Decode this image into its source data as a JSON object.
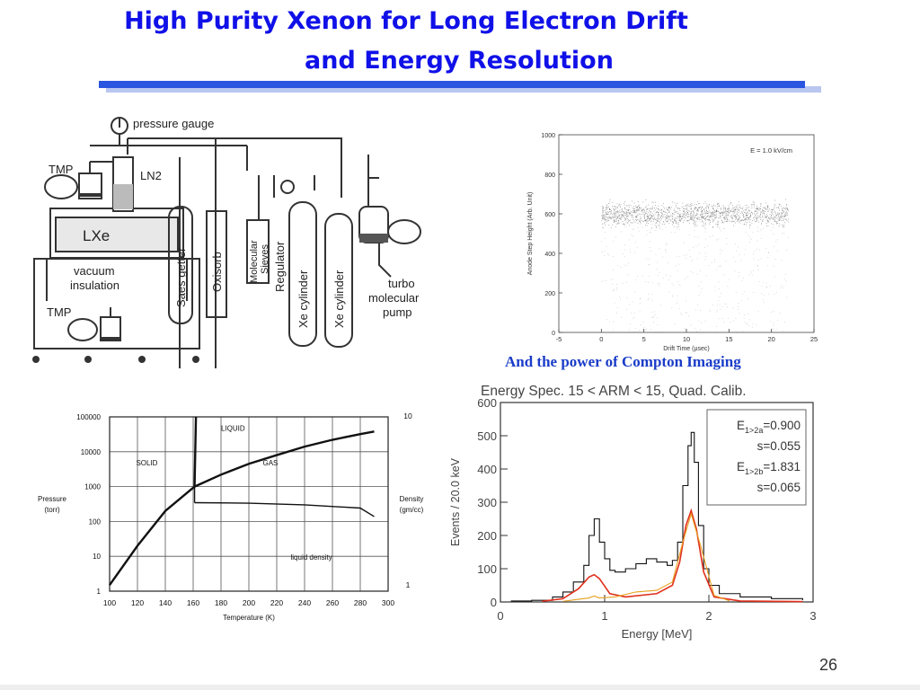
{
  "slide": {
    "title_line1": "High Purity Xenon for Long Electron Drift",
    "title_line2": "and Energy Resolution",
    "caption": "And the power of Compton Imaging",
    "page_number": "26"
  },
  "apparatus": {
    "labels": {
      "pressure_gauge": "pressure gauge",
      "tmp_top": "TMP",
      "ln2": "LN2",
      "lxe": "LXe",
      "vacuum": "vacuum",
      "insulation": "insulation",
      "tmp_bottom": "TMP",
      "saes": "Saes getter",
      "oxisorb": "Oxisorb",
      "mol_sieves_1": "Molecular",
      "mol_sieves_2": "Sieves",
      "regulator": "Regulator",
      "xe1": "Xe cylinder",
      "xe2": "Xe cylinder",
      "turbo1": "turbo",
      "turbo2": "molecular",
      "turbo3": "pump"
    }
  },
  "colors": {
    "title": "#1010e8",
    "rule": "#2a55e0",
    "caption": "#1a3cc8",
    "fit_red": "#e0301c",
    "fit_orange": "#e8a020"
  },
  "chart_data": [
    {
      "type": "scatter",
      "title": "",
      "annotation": "E = 1.0 kV/cm",
      "xlabel": "Drift Time (µsec)",
      "ylabel": "Anode Step Height (Arb. Unit)",
      "xlim": [
        -5,
        25
      ],
      "ylim": [
        0,
        1000
      ],
      "xticks": [
        "-5",
        "0",
        "5",
        "10",
        "15",
        "20",
        "25"
      ],
      "yticks": [
        "0",
        "200",
        "400",
        "600",
        "800",
        "1000"
      ],
      "band": {
        "x_start": 0,
        "x_end": 22,
        "y_center": 600,
        "y_spread": 40
      },
      "grid": false
    },
    {
      "type": "line",
      "title": "",
      "xlabel": "Temperature (K)",
      "ylabel_left": "Pressure (torr)",
      "ylabel_right": "Density (gm/cc)",
      "xlim": [
        100,
        300
      ],
      "y_scale": "log",
      "xticks": [
        "100",
        "120",
        "140",
        "160",
        "180",
        "200",
        "220",
        "240",
        "260",
        "280",
        "300"
      ],
      "yticks_left": [
        "1",
        "10",
        "100",
        "1000",
        "10000",
        "100000"
      ],
      "yticks_right": [
        "1",
        "10"
      ],
      "region_labels": [
        "SOLID",
        "LIQUID",
        "GAS",
        "liquid density"
      ],
      "series": [
        {
          "name": "",
          "x": [
            100,
            120,
            140,
            161
          ],
          "y": [
            1.5,
            20,
            200,
            1000
          ]
        },
        {
          "name": "",
          "x": [
            161,
            180,
            200,
            220,
            240,
            260,
            280,
            290
          ],
          "y": [
            1000,
            2200,
            4500,
            8000,
            14000,
            22000,
            32000,
            38000
          ]
        },
        {
          "name": "liquid density",
          "x": [
            161,
            200,
            240,
            280,
            290
          ],
          "y": [
            3.0,
            2.9,
            2.6,
            2.1,
            1.2
          ]
        }
      ],
      "grid": true
    },
    {
      "type": "line",
      "title": "Energy Spec.  15 < ARM < 15, Quad. Calib.",
      "xlabel": "Energy [MeV]",
      "ylabel": "Events / 20.0 keV",
      "xlim": [
        0,
        3
      ],
      "ylim": [
        0,
        600
      ],
      "xticks": [
        "0",
        "1",
        "2",
        "3"
      ],
      "yticks": [
        "0",
        "100",
        "200",
        "300",
        "400",
        "500",
        "600"
      ],
      "legend_box": [
        {
          "sym": "E",
          "sub": "1>2a",
          "val": "=0.900"
        },
        {
          "sym": "",
          "sub": "",
          "val": "s=0.055"
        },
        {
          "sym": "E",
          "sub": "1>2b",
          "val": "=1.831"
        },
        {
          "sym": "",
          "sub": "",
          "val": "s=0.065"
        }
      ],
      "series": [
        {
          "name": "",
          "x": [
            0.1,
            0.3,
            0.5,
            0.6,
            0.7,
            0.8,
            0.85,
            0.9,
            0.95,
            1.0,
            1.05,
            1.1,
            1.2,
            1.3,
            1.4,
            1.5,
            1.6,
            1.65,
            1.7,
            1.75,
            1.8,
            1.83,
            1.86,
            1.9,
            1.95,
            2.0,
            2.1,
            2.3,
            2.6,
            2.9
          ],
          "y": [
            3,
            5,
            15,
            30,
            60,
            110,
            200,
            250,
            180,
            130,
            95,
            90,
            100,
            115,
            130,
            120,
            110,
            125,
            180,
            350,
            470,
            510,
            420,
            230,
            100,
            50,
            25,
            15,
            10,
            5
          ]
        },
        {
          "name": "",
          "x": [
            0.4,
            0.6,
            0.75,
            0.85,
            0.9,
            0.95,
            1.05,
            1.2,
            1.5,
            1.65,
            1.72,
            1.78,
            1.83,
            1.88,
            1.95,
            2.05,
            2.3,
            2.9
          ],
          "y": [
            2,
            10,
            40,
            75,
            82,
            70,
            25,
            15,
            25,
            50,
            120,
            230,
            275,
            220,
            90,
            15,
            3,
            1
          ]
        },
        {
          "name": "",
          "x": [
            0.6,
            0.85,
            0.9,
            0.95,
            1.1,
            1.3,
            1.5,
            1.65,
            1.75,
            1.83,
            1.92,
            2.05,
            2.2
          ],
          "y": [
            2,
            12,
            18,
            12,
            15,
            30,
            35,
            60,
            180,
            265,
            170,
            20,
            3
          ]
        }
      ],
      "grid": false
    }
  ]
}
